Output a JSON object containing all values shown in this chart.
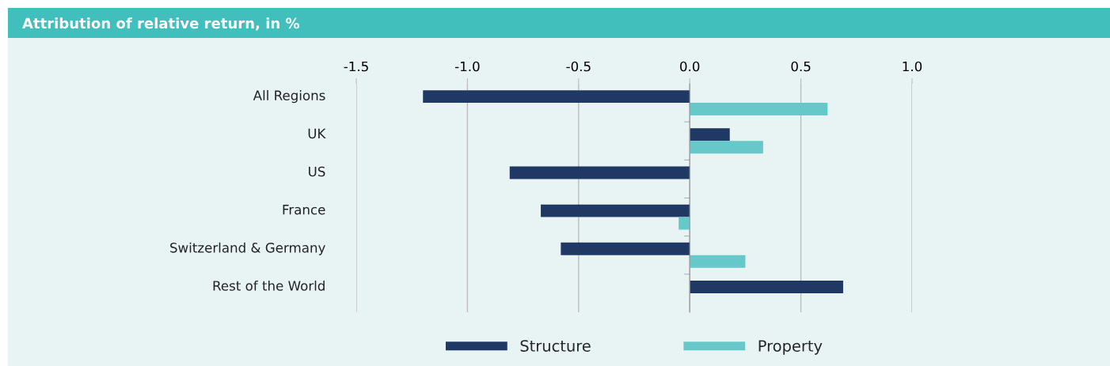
{
  "chart_data": {
    "type": "bar",
    "orientation": "horizontal",
    "title": "Attribution of relative return, in %",
    "categories": [
      "All Regions",
      "UK",
      "US",
      "France",
      "Switzerland & Germany",
      "Rest of the World"
    ],
    "series": [
      {
        "name": "Structure",
        "color": "#1f3864",
        "values": [
          -1.2,
          0.18,
          -0.81,
          -0.67,
          -0.58,
          0.69
        ]
      },
      {
        "name": "Property",
        "color": "#66c8c8",
        "values": [
          0.62,
          0.33,
          0,
          -0.05,
          0.25,
          0
        ]
      }
    ],
    "xlim": [
      -1.5,
      1.0
    ],
    "xticks": [
      {
        "value": -1.5,
        "label": "-1.5"
      },
      {
        "value": -1.0,
        "label": "-1.0"
      },
      {
        "value": -0.5,
        "label": "-0.5"
      },
      {
        "value": 0.0,
        "label": "0.0"
      },
      {
        "value": 0.5,
        "label": "0.5"
      },
      {
        "value": 1.0,
        "label": "1.0"
      }
    ],
    "grid": "x",
    "legend": "bottom"
  }
}
